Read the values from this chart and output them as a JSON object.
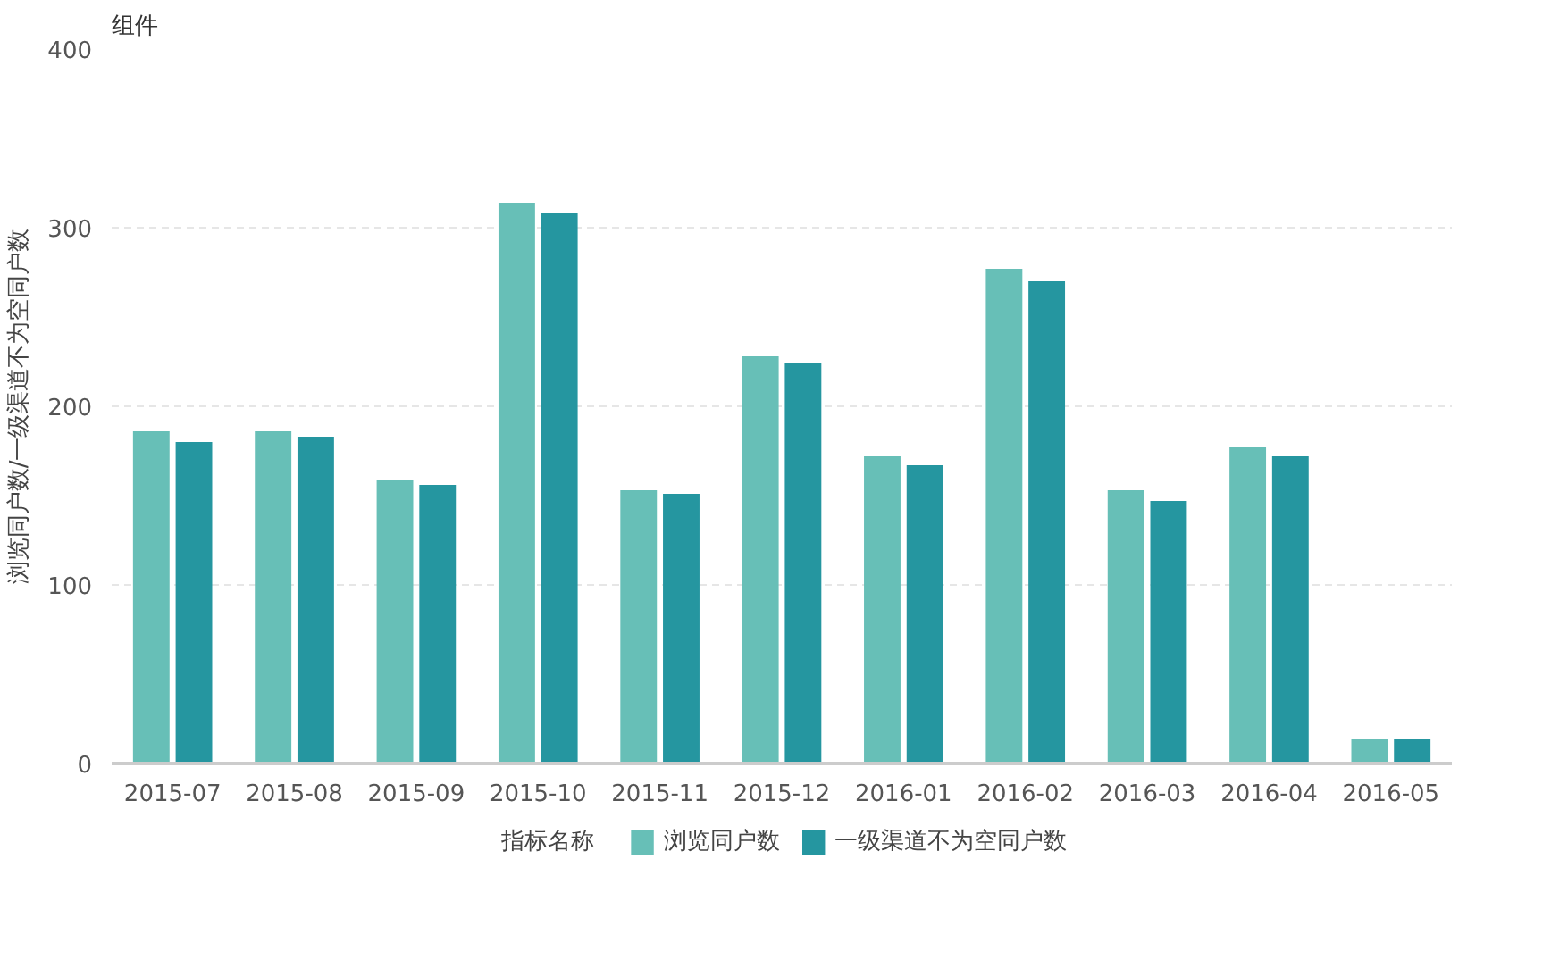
{
  "chart_data": {
    "type": "bar",
    "title": "组件",
    "ylabel": "浏览同户数/一级渠道不为空同户数",
    "legend_title": "指标名称",
    "categories": [
      "2015-07",
      "2015-08",
      "2015-09",
      "2015-10",
      "2015-11",
      "2015-12",
      "2016-01",
      "2016-02",
      "2016-03",
      "2016-04",
      "2016-05"
    ],
    "series": [
      {
        "name": "浏览同户数",
        "color": "#67bfb7",
        "values": [
          186,
          186,
          159,
          314,
          153,
          228,
          172,
          277,
          153,
          177,
          14
        ]
      },
      {
        "name": "一级渠道不为空同户数",
        "color": "#2596a0",
        "values": [
          180,
          183,
          156,
          308,
          151,
          224,
          167,
          270,
          147,
          172,
          14
        ]
      }
    ],
    "ylim": [
      0,
      400
    ],
    "yticks": [
      0,
      100,
      200,
      300,
      400
    ],
    "grid": "y",
    "legend": "bottom"
  }
}
